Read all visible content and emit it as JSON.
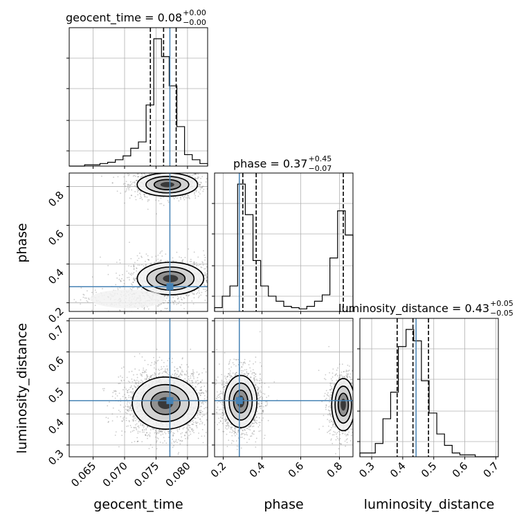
{
  "chart_data": {
    "type": "corner",
    "parameters": [
      {
        "name": "geocent_time",
        "title": {
          "label": "geocent_time = ",
          "median": "0.08",
          "plus": "+0.00",
          "minus": "−0.00"
        },
        "range": [
          0.0612,
          0.0832
        ],
        "ticks": [
          0.065,
          0.07,
          0.075,
          0.08
        ],
        "tick_labels": [
          "0.065",
          "0.070",
          "0.075",
          "0.080"
        ],
        "truth": 0.0772,
        "quantiles": [
          0.0741,
          0.0762,
          0.0782
        ],
        "histogram": [
          0,
          0,
          1,
          1,
          2,
          3,
          5,
          8,
          14,
          19,
          48,
          100,
          86,
          63,
          31,
          9,
          5,
          2
        ]
      },
      {
        "name": "phase",
        "title": {
          "label": "phase = ",
          "median": "0.37",
          "plus": "+0.45",
          "minus": "−0.07"
        },
        "range": [
          0.155,
          0.87
        ],
        "ticks": [
          0.2,
          0.4,
          0.6,
          0.8
        ],
        "tick_labels": [
          "0.2",
          "0.4",
          "0.6",
          "0.8"
        ],
        "truth": 0.283,
        "quantiles": [
          0.301,
          0.37,
          0.82
        ],
        "histogram": [
          3,
          12,
          20,
          100,
          76,
          40,
          20,
          12,
          8,
          4,
          3,
          2,
          4,
          8,
          13,
          42,
          79,
          60
        ]
      },
      {
        "name": "luminosity_distance",
        "title": {
          "label": "luminosity_distance = ",
          "median": "0.43",
          "plus": "+0.05",
          "minus": "−0.05"
        },
        "range": [
          0.262,
          0.708
        ],
        "ticks": [
          0.3,
          0.4,
          0.5,
          0.6,
          0.7
        ],
        "tick_labels": [
          "0.3",
          "0.4",
          "0.5",
          "0.6",
          "0.7"
        ],
        "truth": 0.443,
        "quantiles": [
          0.382,
          0.433,
          0.483
        ],
        "histogram": [
          2,
          2,
          7,
          20,
          34,
          58,
          67,
          61,
          40,
          23,
          12,
          6,
          2,
          1,
          1,
          0,
          0,
          0
        ]
      }
    ],
    "grid": true
  }
}
